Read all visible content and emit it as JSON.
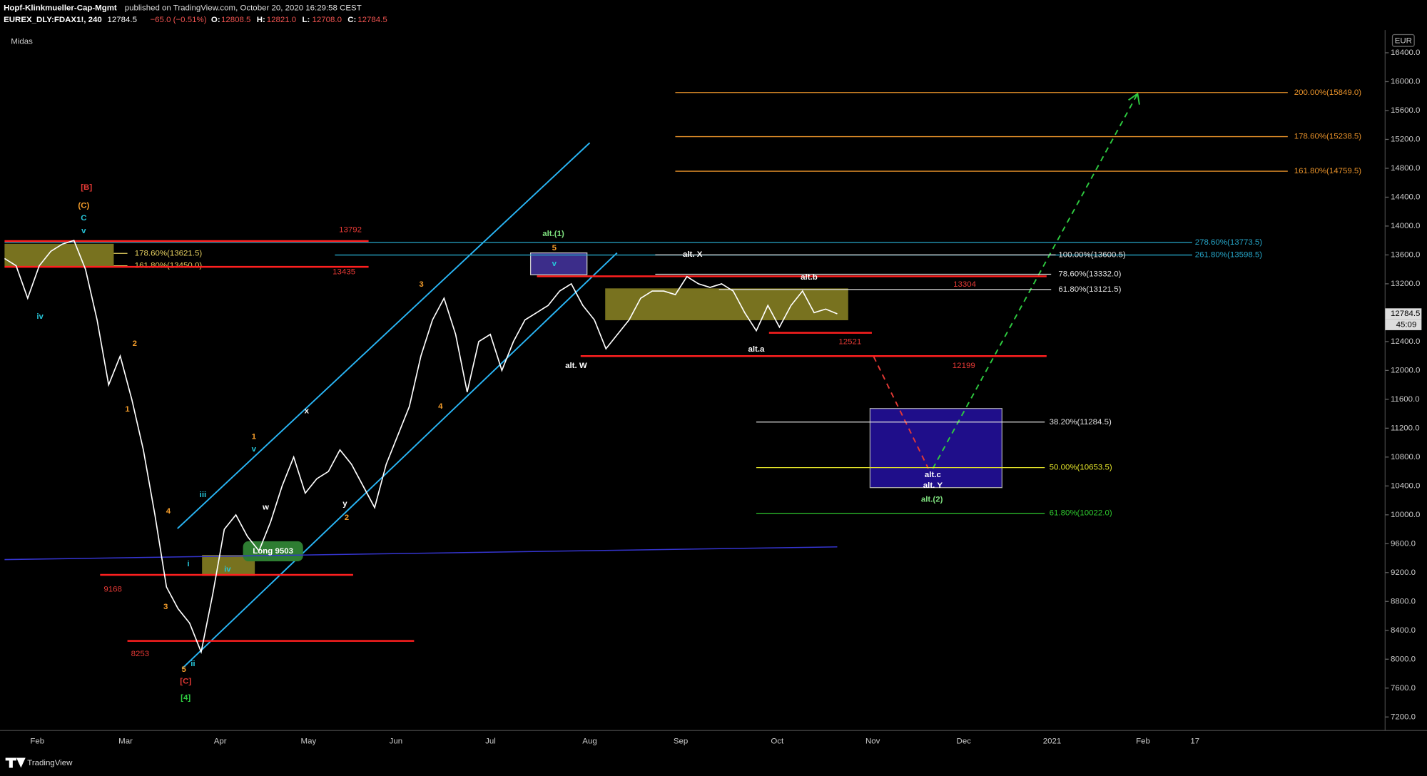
{
  "header": {
    "author": "Hopf-Klinkmueller-Cap-Mgmt",
    "published": "published on TradingView.com, October 20, 2020 16:29:58 CEST",
    "symbol": "EUREX_DLY:FDAX1!, 240",
    "last": "12784.5",
    "change": "−65.0 (−0.51%)",
    "ohlc": [
      {
        "key": "O:",
        "value": "12808.5"
      },
      {
        "key": "H:",
        "value": "12821.0"
      },
      {
        "key": "L:",
        "value": "12708.0"
      },
      {
        "key": "C:",
        "value": "12784.5"
      }
    ]
  },
  "indicator": "Midas",
  "currency": "EUR",
  "countdown": "45:09",
  "footer": "TradingView",
  "chart_data": {
    "type": "line",
    "color": "#ffffff",
    "values": [
      13550,
      13450,
      13000,
      13450,
      13650,
      13750,
      13800,
      13400,
      12700,
      11800,
      12200,
      11600,
      10900,
      10000,
      9000,
      8700,
      8500,
      8100,
      8900,
      9800,
      10000,
      9700,
      9500,
      9900,
      10400,
      10800,
      10300,
      10500,
      10600,
      10900,
      10700,
      10400,
      10100,
      10700,
      11100,
      11500,
      12200,
      12700,
      13000,
      12500,
      11700,
      12400,
      12500,
      12000,
      12400,
      12700,
      12800,
      12900,
      13100,
      13200,
      12900,
      12700,
      12300,
      12500,
      12700,
      13000,
      13100,
      13100,
      13050,
      13300,
      13200,
      13150,
      13200,
      13100,
      12800,
      12550,
      12900,
      12600,
      12900,
      13100,
      12800,
      12850,
      12784.5
    ],
    "ylim": [
      7025,
      16690
    ],
    "yticks": [
      {
        "value": 7200,
        "label": "7200.0"
      },
      {
        "value": 7600,
        "label": "7600.0"
      },
      {
        "value": 8000,
        "label": "8000.0"
      },
      {
        "value": 8400,
        "label": "8400.0"
      },
      {
        "value": 8800,
        "label": "8800.0"
      },
      {
        "value": 9200,
        "label": "9200.0"
      },
      {
        "value": 9600,
        "label": "9600.0"
      },
      {
        "value": 10000,
        "label": "10000.0"
      },
      {
        "value": 10400,
        "label": "10400.0"
      },
      {
        "value": 10800,
        "label": "10800.0"
      },
      {
        "value": 11200,
        "label": "11200.0"
      },
      {
        "value": 11600,
        "label": "11600.0"
      },
      {
        "value": 12000,
        "label": "12000.0"
      },
      {
        "value": 12400,
        "label": "12400.0"
      },
      {
        "value": 12800,
        "label": "12800.0"
      },
      {
        "value": 13200,
        "label": "13200.0"
      },
      {
        "value": 13600,
        "label": "13600.0"
      },
      {
        "value": 14000,
        "label": "14000.0"
      },
      {
        "value": 14400,
        "label": "14400.0"
      },
      {
        "value": 14800,
        "label": "14800.0"
      },
      {
        "value": 15200,
        "label": "15200.0"
      },
      {
        "value": 15600,
        "label": "15600.0"
      },
      {
        "value": 16000,
        "label": "16000.0"
      },
      {
        "value": 16400,
        "label": "16400.0"
      }
    ],
    "x_labels": [
      "Feb",
      "Mar",
      "Apr",
      "May",
      "Jun",
      "Jul",
      "Aug",
      "Sep",
      "Oct",
      "Nov",
      "Dec",
      "2021",
      "Feb",
      "17"
    ],
    "midas": {
      "color": "#3535d0",
      "values": [
        9380,
        9556
      ]
    },
    "levels": [
      {
        "label": "13792",
        "value": 13792
      },
      {
        "label": "13435",
        "value": 13435
      },
      {
        "label": "9168",
        "value": 9168
      },
      {
        "label": "8253",
        "value": 8253
      },
      {
        "label": "12521",
        "value": 12521
      },
      {
        "label": "12199",
        "value": 12199
      },
      {
        "label": "13304",
        "value": 13304
      }
    ],
    "fibs": [
      {
        "label": "200.00%(15849.0)",
        "value": 15849,
        "color": "#e8922a"
      },
      {
        "label": "178.60%(15238.5)",
        "value": 15238.5,
        "color": "#e8922a"
      },
      {
        "label": "161.80%(14759.5)",
        "value": 14759.5,
        "color": "#e8922a"
      },
      {
        "label": "278.60%(13773.5)",
        "value": 13773.5,
        "color": "#26a6c8"
      },
      {
        "label": "261.80%(13598.5)",
        "value": 13598.5,
        "color": "#26a6c8"
      },
      {
        "label": "100.00%(13600.5)",
        "value": 13600.5,
        "color": "#e0e0e0"
      },
      {
        "label": "78.60%(13332.0)",
        "value": 13332,
        "color": "#e0e0e0"
      },
      {
        "label": "61.80%(13121.5)",
        "value": 13121.5,
        "color": "#e0e0e0"
      },
      {
        "label": "38.20%(11284.5)",
        "value": 11284.5,
        "color": "#e0e0e0"
      },
      {
        "label": "50.00%(10653.5)",
        "value": 10653.5,
        "color": "#e6e62a"
      },
      {
        "label": "61.80%(10022.0)",
        "value": 10022,
        "color": "#2ec82e"
      },
      {
        "label": "178.60%(13621.5)",
        "value": 13621.5,
        "color": "#e6d060"
      },
      {
        "label": "161.80%(13450.0)",
        "value": 13450,
        "color": "#e6d060"
      }
    ],
    "annotations": [
      {
        "text": "[B]",
        "color": "#e53935"
      },
      {
        "text": "(C)",
        "color": "#f39c2a"
      },
      {
        "text": "C",
        "color": "#26c6da"
      },
      {
        "text": "v",
        "color": "#26c6da"
      },
      {
        "text": "iv",
        "color": "#26c6da"
      },
      {
        "text": "2",
        "color": "#f39c2a"
      },
      {
        "text": "1",
        "color": "#f39c2a"
      },
      {
        "text": "4",
        "color": "#f39c2a"
      },
      {
        "text": "3",
        "color": "#f39c2a"
      },
      {
        "text": "5",
        "color": "#f39c2a"
      },
      {
        "text": "[C]",
        "color": "#e53935"
      },
      {
        "text": "[4]",
        "color": "#2ecc40"
      },
      {
        "text": "ii",
        "color": "#26c6da"
      },
      {
        "text": "i",
        "color": "#26c6da"
      },
      {
        "text": "iii",
        "color": "#26c6da"
      },
      {
        "text": "iv",
        "color": "#26c6da"
      },
      {
        "text": "1",
        "color": "#f39c2a"
      },
      {
        "text": "v",
        "color": "#26c6da"
      },
      {
        "text": "w",
        "color": "#ffffff"
      },
      {
        "text": "x",
        "color": "#ffffff"
      },
      {
        "text": "y",
        "color": "#ffffff"
      },
      {
        "text": "2",
        "color": "#f39c2a"
      },
      {
        "text": "3",
        "color": "#f39c2a"
      },
      {
        "text": "4",
        "color": "#f39c2a"
      },
      {
        "text": "alt.(1)",
        "color": "#7ee07e"
      },
      {
        "text": "5",
        "color": "#f39c2a"
      },
      {
        "text": "v",
        "color": "#26c6da"
      },
      {
        "text": "alt. W",
        "color": "#ffffff"
      },
      {
        "text": "alt. X",
        "color": "#ffffff"
      },
      {
        "text": "alt.b",
        "color": "#ffffff"
      },
      {
        "text": "alt.a",
        "color": "#ffffff"
      },
      {
        "text": "alt.c",
        "color": "#ffffff"
      },
      {
        "text": "alt. Y",
        "color": "#ffffff"
      },
      {
        "text": "alt.(2)",
        "color": "#7ee07e"
      },
      {
        "text": "Long 9503",
        "color": "#ffffff"
      }
    ]
  }
}
